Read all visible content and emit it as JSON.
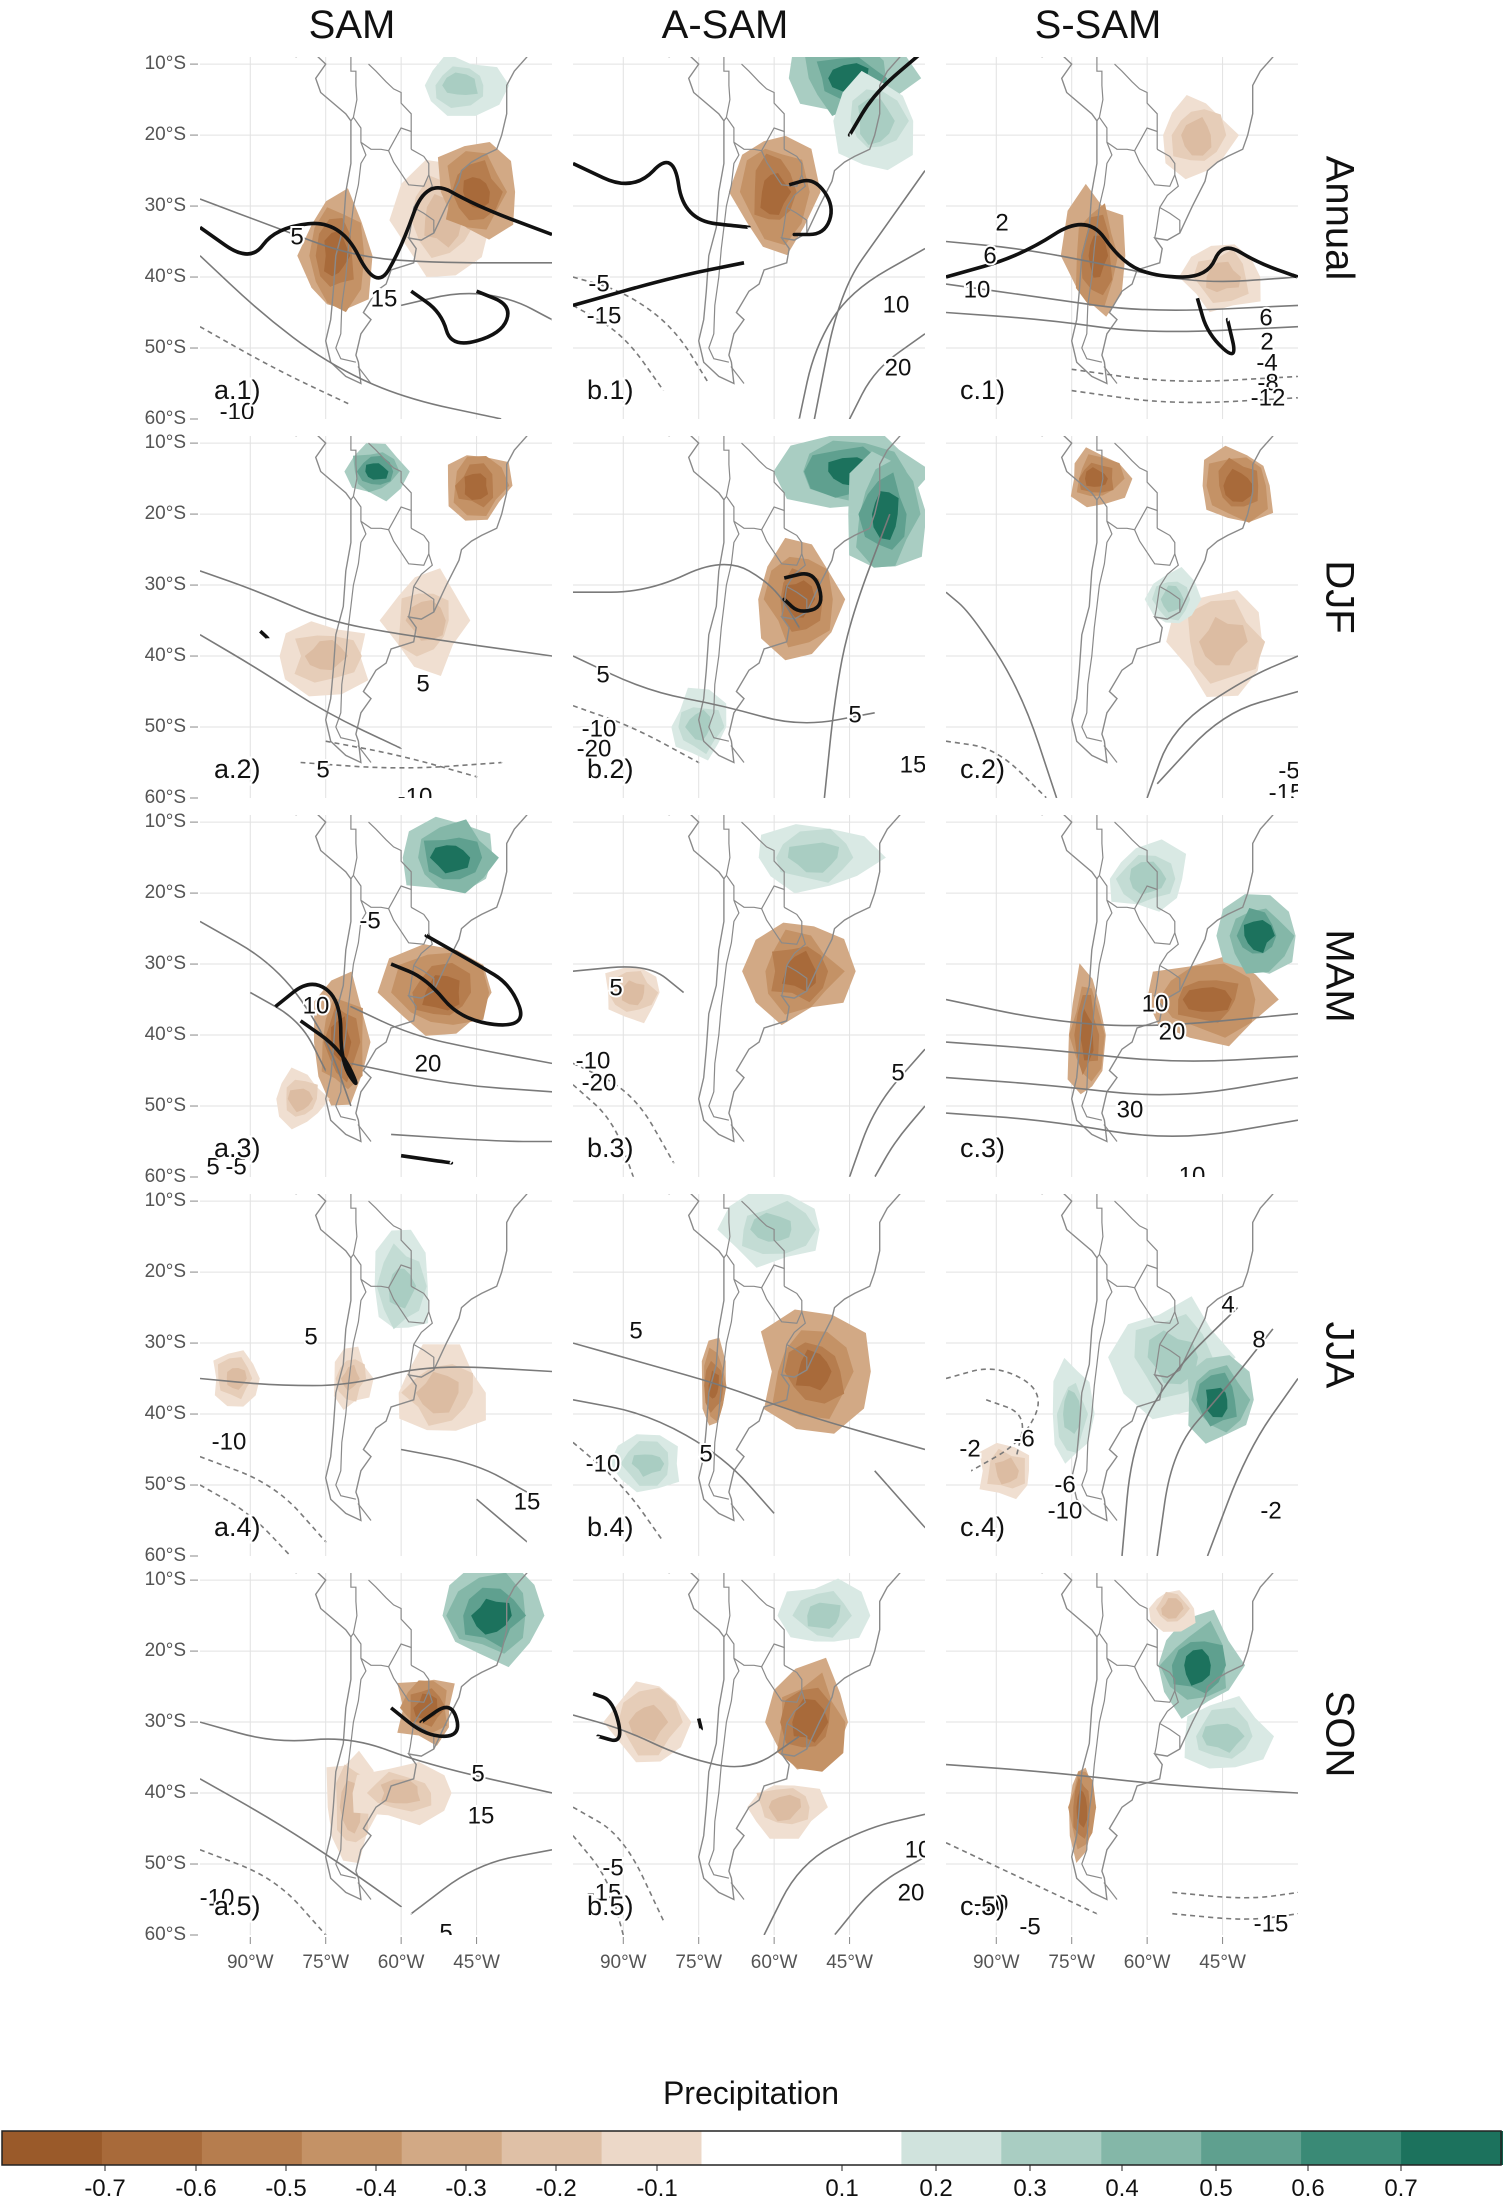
{
  "columns": [
    "SAM",
    "A-SAM",
    "S-SAM"
  ],
  "rows": [
    "Annual",
    "DJF",
    "MAM",
    "JJA",
    "SON"
  ],
  "lat_ticks": [
    "10°S",
    "20°S",
    "30°S",
    "40°S",
    "50°S",
    "60°S"
  ],
  "lon_ticks": [
    "90°W",
    "75°W",
    "60°W",
    "45°W"
  ],
  "panel_labels": [
    [
      "a.1)",
      "b.1)",
      "c.1)"
    ],
    [
      "a.2)",
      "b.2)",
      "c.2)"
    ],
    [
      "a.3)",
      "b.3)",
      "c.3)"
    ],
    [
      "a.4)",
      "b.4)",
      "c.4)"
    ],
    [
      "a.5)",
      "b.5)",
      "c.5)"
    ]
  ],
  "contour_labels": [
    [
      [
        "5",
        "15",
        "-10"
      ],
      [
        "-5",
        "-15",
        "10",
        "20"
      ],
      [
        "2",
        "6",
        "10",
        "6",
        "2",
        "-4",
        "-8",
        "-12"
      ]
    ],
    [
      [
        "5",
        "5",
        "-10"
      ],
      [
        "5",
        "5",
        "-10",
        "-20",
        "15"
      ],
      [
        "-5",
        "-15"
      ]
    ],
    [
      [
        "10",
        "20",
        "-5",
        "5",
        "-5"
      ],
      [
        "5",
        "-10",
        "-20",
        "5"
      ],
      [
        "10",
        "20",
        "30",
        "10"
      ]
    ],
    [
      [
        "5",
        "-10",
        "15"
      ],
      [
        "5",
        "-10",
        "5"
      ],
      [
        "4",
        "8",
        "-2",
        "-6",
        "-6",
        "-10",
        "-2"
      ]
    ],
    [
      [
        "5",
        "15",
        "-10",
        "5"
      ],
      [
        "-5",
        "-15",
        "10",
        "20"
      ],
      [
        "-10",
        "-5",
        "-15"
      ]
    ]
  ],
  "colorbar": {
    "title": "Precipitation",
    "labels": [
      "-0.7",
      "-0.6",
      "-0.5",
      "-0.4",
      "-0.3",
      "-0.2",
      "-0.1",
      "0.1",
      "0.2",
      "0.3",
      "0.4",
      "0.5",
      "0.6",
      "0.7"
    ],
    "colors": [
      "#9a5a2a",
      "#a86a3a",
      "#b67d4e",
      "#c49266",
      "#d2a985",
      "#dfc0a6",
      "#ecd8c8",
      "#ffffff",
      "#d0e3dd",
      "#a9cdc2",
      "#84b7a8",
      "#5fa08f",
      "#3a8a76",
      "#1c725d",
      "#0f5f4c"
    ]
  },
  "colors": {
    "brown_strong": "#a86a3a",
    "brown_light": "#e4c8b0",
    "green_strong": "#1c725d",
    "green_light": "#c7ded7",
    "contour": "#7a7a7a",
    "signif": "#111111"
  }
}
